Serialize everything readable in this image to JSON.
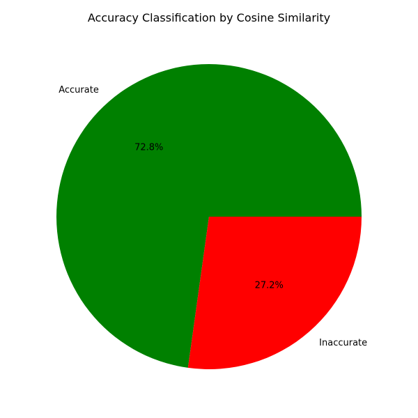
{
  "chart_data": {
    "type": "pie",
    "title": "Accuracy Classification by Cosine Similarity",
    "categories": [
      "Accurate",
      "Inaccurate"
    ],
    "values": [
      72.8,
      27.2
    ],
    "percent_labels": [
      "72.8%",
      "27.2%"
    ],
    "colors": [
      "#008000",
      "#ff0000"
    ],
    "start_angle_deg": 0,
    "direction": "counterclockwise",
    "legend": "none"
  }
}
